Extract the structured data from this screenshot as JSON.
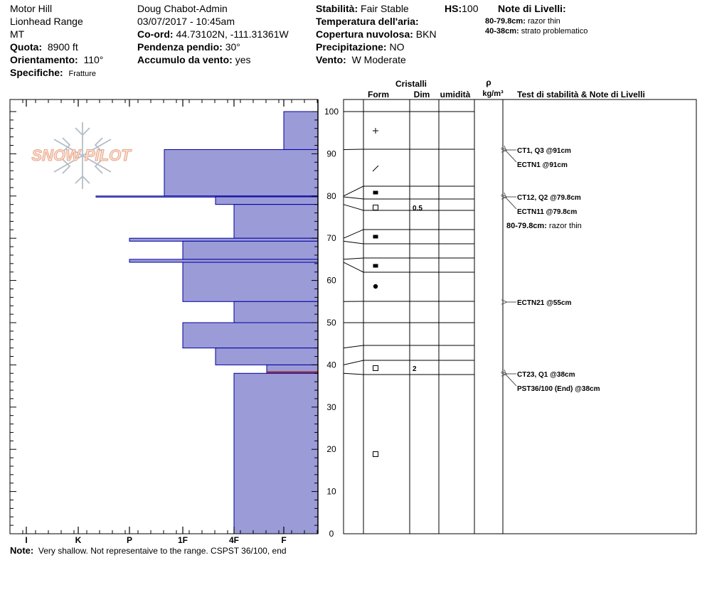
{
  "header": {
    "col1": [
      "Motor Hill",
      "Lionhead Range",
      "MT"
    ],
    "altitude_label": "Quota:",
    "altitude_value": "8900 ft",
    "aspect_label": "Orientamento:",
    "aspect_value": "110°",
    "specifics_label": "Specifiche:",
    "specifics_value": "Fratture",
    "observer": "Doug Chabot-Admin",
    "datetime": "03/07/2017 - 10:45am",
    "coord_label": "Co-ord:",
    "coord_value": "44.73102N, -111.31361W",
    "slope_label": "Pendenza pendio:",
    "slope_value": "30°",
    "windload_label": "Accumulo da vento:",
    "windload_value": "yes",
    "stability_label": "Stabilità:",
    "stability_value": "Fair Stable",
    "hs_label": "HS:",
    "hs_value": "100",
    "airtemp_label": "Temperatura dell'aria:",
    "airtemp_value": "",
    "cloud_label": "Copertura nuvolosa:",
    "cloud_value": "BKN",
    "precip_label": "Precipitazione:",
    "precip_value": "NO",
    "wind_label": "Vento:",
    "wind_value": "W Moderate",
    "layer_notes_title": "Note di Livelli:",
    "layer_notes": [
      {
        "range": "80-79.8cm:",
        "text": "razor thin"
      },
      {
        "range": "40-38cm:",
        "text": "strato problematico"
      }
    ]
  },
  "note": {
    "label": "Note:",
    "text": "Very shallow. Not representaive to the range. CSPST 36/100, end"
  },
  "logo_text": "SNOW PILOT",
  "colors": {
    "layer_fill": "#9b9bd8",
    "layer_stroke": "#00009c",
    "weak_layer": "#9c2a2a"
  },
  "chart_data": {
    "type": "snow-profile",
    "hardness_ticks": [
      "I",
      "K",
      "P",
      "1F",
      "4F",
      "F"
    ],
    "height_ticks": [
      0,
      10,
      20,
      30,
      40,
      50,
      60,
      70,
      80,
      90,
      100
    ],
    "height_range": [
      0,
      100
    ],
    "column_headers": {
      "crystals": "Cristalli",
      "form": "Form",
      "size": "Dim",
      "moisture": "umidità",
      "density_symbol": "ρ",
      "density_unit": "kg/m³",
      "tests": "Test di stabilità & Note di Livelli"
    },
    "layers": [
      {
        "top": 100,
        "bottom": 91,
        "hardness": "F"
      },
      {
        "top": 91,
        "bottom": 80,
        "hardness": "1F+"
      },
      {
        "top": 80,
        "bottom": 79.8,
        "hardness": "K-"
      },
      {
        "top": 79.8,
        "bottom": 78,
        "hardness": "4F+"
      },
      {
        "top": 78,
        "bottom": 70,
        "hardness": "4F"
      },
      {
        "top": 70,
        "bottom": 69.3,
        "hardness": "P"
      },
      {
        "top": 69.3,
        "bottom": 65,
        "hardness": "1F"
      },
      {
        "top": 65,
        "bottom": 64.3,
        "hardness": "P"
      },
      {
        "top": 64.3,
        "bottom": 55,
        "hardness": "1F"
      },
      {
        "top": 55,
        "bottom": 50,
        "hardness": "4F"
      },
      {
        "top": 50,
        "bottom": 44,
        "hardness": "1F"
      },
      {
        "top": 44,
        "bottom": 40,
        "hardness": "4F+"
      },
      {
        "top": 40,
        "bottom": 38,
        "hardness": "F+"
      },
      {
        "top": 38,
        "bottom": 0,
        "hardness": "4F"
      }
    ],
    "weak_layer_height": 38.3,
    "grain_forms": [
      {
        "height": 95.5,
        "symbol": "+"
      },
      {
        "height": 86.5,
        "symbol": "/"
      },
      {
        "height": 80.8,
        "symbol": "filled-square"
      },
      {
        "height": 77.3,
        "symbol": "open-square",
        "size": "0.5"
      },
      {
        "height": 70.3,
        "symbol": "filled-square"
      },
      {
        "height": 63.8,
        "symbol": "filled-square"
      },
      {
        "height": 58.5,
        "symbol": "filled-circle"
      },
      {
        "height": 39.3,
        "symbol": "open-square",
        "size": "2"
      },
      {
        "height": 18.8,
        "symbol": "open-square"
      }
    ],
    "tests": [
      {
        "height": 91,
        "label": "CT1, Q3 @91cm"
      },
      {
        "height": 91,
        "label": "ECTN1 @91cm"
      },
      {
        "height": 79.8,
        "label": "CT12, Q2 @79.8cm"
      },
      {
        "height": 79.8,
        "label": "ECTN11 @79.8cm"
      },
      {
        "height": 55,
        "label": "ECTN21 @55cm"
      },
      {
        "height": 38,
        "label": "CT23, Q1 @38cm"
      },
      {
        "height": 38,
        "label": "PST36/100 (End) @38cm"
      }
    ],
    "inline_note": {
      "range": "80-79.8cm:",
      "text": "razor thin"
    }
  }
}
